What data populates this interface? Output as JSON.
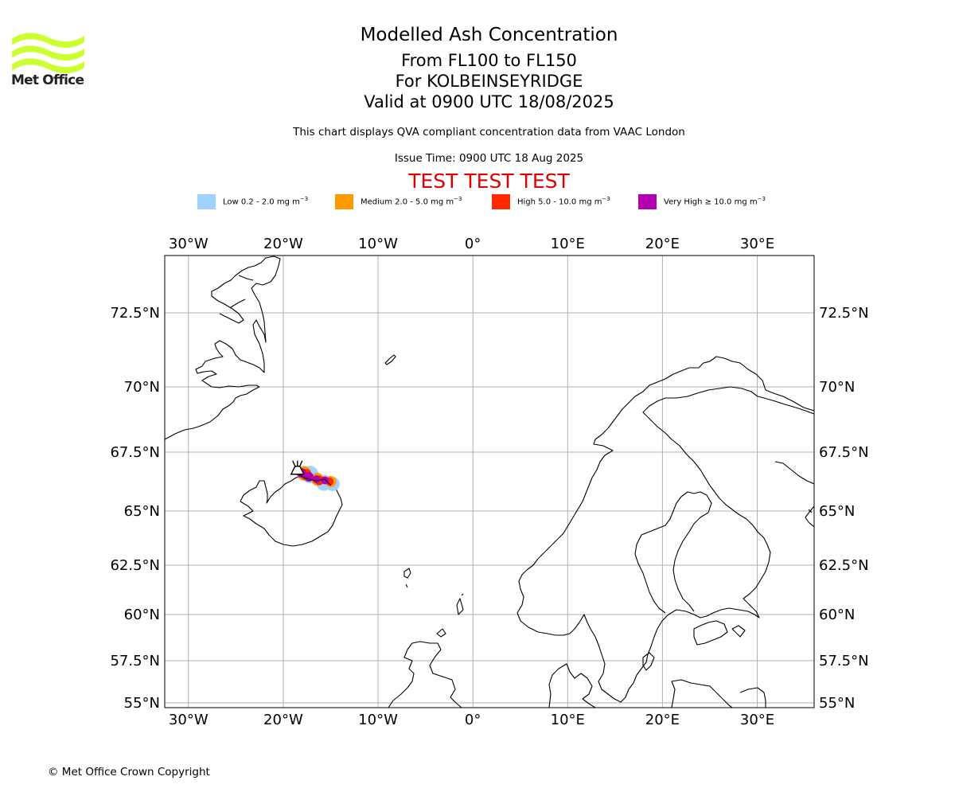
{
  "logo": {
    "text": "Met Office",
    "color": "#ccff33",
    "icon": "met-office-wave-logo"
  },
  "title": {
    "line1": "Modelled Ash Concentration",
    "line2": "From FL100 to FL150",
    "line3": "For KOLBEINSEYRIDGE",
    "line4": "Valid at 0900 UTC 18/08/2025",
    "description": "This chart displays QVA compliant concentration data from VAAC London",
    "issue_time": "Issue Time: 0900 UTC 18 Aug 2025",
    "test_banner": "TEST TEST TEST",
    "test_color": "#e00000"
  },
  "legend": [
    {
      "label": "Low 0.2 - 2.0 mg m",
      "color": "#a0d2ff"
    },
    {
      "label": "Medium 2.0 - 5.0 mg m",
      "color": "#ff9900"
    },
    {
      "label": "High 5.0 - 10.0 mg m",
      "color": "#ff2a00"
    },
    {
      "label": "Very High  ≥  10.0 mg m",
      "color": "#b000b0"
    }
  ],
  "legend_unit_exponent": "−3",
  "map": {
    "projection": "equirectangular",
    "lon_range": [
      -32.5,
      36.0
    ],
    "lat_range": [
      54.8,
      74.4
    ],
    "gridlines": true,
    "grid_color": "#b0b0b0",
    "volcano_symbol": "volcano-icon",
    "volcano_location": {
      "lon": -18.5,
      "lat": 66.9
    },
    "lon_ticks": [
      {
        "value": -30,
        "label": "30°W"
      },
      {
        "value": -20,
        "label": "20°W"
      },
      {
        "value": -10,
        "label": "10°W"
      },
      {
        "value": 0,
        "label": "0°"
      },
      {
        "value": 10,
        "label": "10°E"
      },
      {
        "value": 20,
        "label": "20°E"
      },
      {
        "value": 30,
        "label": "30°E"
      }
    ],
    "lat_ticks": [
      {
        "value": 72.5,
        "label": "72.5°N"
      },
      {
        "value": 70,
        "label": "70°N"
      },
      {
        "value": 67.5,
        "label": "67.5°N"
      },
      {
        "value": 65,
        "label": "65°N"
      },
      {
        "value": 62.5,
        "label": "62.5°N"
      },
      {
        "value": 60,
        "label": "60°N"
      },
      {
        "value": 57.5,
        "label": "57.5°N"
      },
      {
        "value": 55,
        "label": "55°N"
      }
    ]
  },
  "footer": {
    "copyright": "© Met Office Crown Copyright"
  }
}
